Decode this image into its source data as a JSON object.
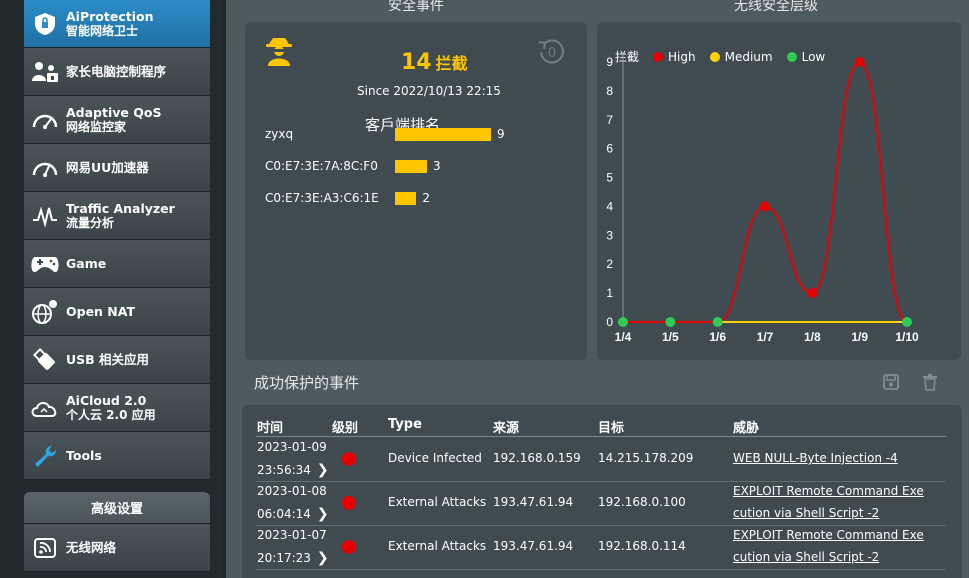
{
  "sidebar": {
    "items": [
      {
        "label": "AiProtection",
        "sub": "智能网络卫士",
        "icon": "shield-icon"
      },
      {
        "label": "家长电脑控制程序",
        "sub": "",
        "icon": "family-icon"
      },
      {
        "label": "Adaptive QoS",
        "sub": "网络监控家",
        "icon": "speedometer-icon"
      },
      {
        "label": "网易UU加速器",
        "sub": "",
        "icon": "gauge-icon"
      },
      {
        "label": "Traffic Analyzer",
        "sub": "流量分析",
        "icon": "traffic-icon"
      },
      {
        "label": "Game",
        "sub": "",
        "icon": "gamepad-icon"
      },
      {
        "label": "Open NAT",
        "sub": "",
        "icon": "nat-icon"
      },
      {
        "label": "USB 相关应用",
        "sub": "",
        "icon": "usb-icon"
      },
      {
        "label": "AiCloud 2.0",
        "sub": "个人云 2.0 应用",
        "icon": "cloud-icon"
      },
      {
        "label": "Tools",
        "sub": "",
        "icon": "wrench-icon"
      }
    ],
    "advanced": {
      "title": "高级设置",
      "items": [
        {
          "label": "无线网络",
          "icon": "wifi-icon"
        }
      ]
    }
  },
  "security_events": {
    "title": "安全事件",
    "count": "14",
    "count_label": "拦截",
    "since": "Since 2022/10/13 22:15",
    "ranking_title": "客戶端排名",
    "ranking": [
      {
        "client": "zyxq",
        "count": 9
      },
      {
        "client": "C0:E7:3E:7A:8C:F0",
        "count": 3
      },
      {
        "client": "C0:E7:3E:A3:C6:1E",
        "count": 2
      }
    ]
  },
  "wireless_level": {
    "title": "无线安全层级",
    "legend_prefix": "拦截",
    "colors": {
      "high": "#e60000",
      "medium": "#ffd200",
      "low": "#2ecc52"
    },
    "chart_data": {
      "type": "line",
      "categories": [
        "1/4",
        "1/5",
        "1/6",
        "1/7",
        "1/8",
        "1/9",
        "1/10"
      ],
      "series": [
        {
          "name": "High",
          "values": [
            0,
            0,
            0,
            4,
            1,
            9,
            0
          ]
        },
        {
          "name": "Medium",
          "values": [
            0,
            0,
            0,
            0,
            0,
            0,
            0
          ]
        },
        {
          "name": "Low",
          "values": [
            0,
            0,
            0,
            0,
            0,
            0,
            0
          ]
        }
      ],
      "ylim": [
        0,
        9
      ],
      "yticks": [
        "0",
        "1",
        "2",
        "3",
        "4",
        "5",
        "6",
        "7",
        "8",
        "9"
      ],
      "legend_position": "top-left",
      "grid": false
    }
  },
  "protected_events": {
    "title": "成功保护的事件",
    "headers": {
      "time": "时间",
      "level": "级别",
      "type": "Type",
      "source": "来源",
      "target": "目标",
      "threat": "威胁"
    },
    "rows": [
      {
        "date": "2023-01-09",
        "time": "23:56:34",
        "type": "Device Infected",
        "source": "192.168.0.159",
        "target": "14.215.178.209",
        "threat_line1": "WEB NULL-Byte Injection -4",
        "threat_line2": ""
      },
      {
        "date": "2023-01-08",
        "time": "06:04:14",
        "type": "External Attacks",
        "source": "193.47.61.94",
        "target": "192.168.0.100",
        "threat_line1": "EXPLOIT Remote Command Exe",
        "threat_line2": "cution via Shell Script -2"
      },
      {
        "date": "2023-01-07",
        "time": "20:17:23",
        "type": "External Attacks",
        "source": "193.47.61.94",
        "target": "192.168.0.114",
        "threat_line1": "EXPLOIT Remote Command Exe",
        "threat_line2": "cution via Shell Script -2"
      }
    ],
    "severity_color": "#e60000"
  }
}
